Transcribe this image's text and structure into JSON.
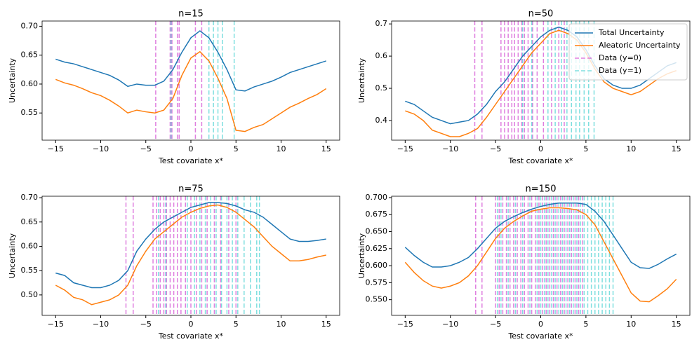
{
  "chart_data": [
    {
      "type": "line",
      "title": "n=15",
      "xlabel": "Test covariate x*",
      "ylabel": "Uncertainty",
      "x": [
        -15,
        -14,
        -13,
        -12,
        -11,
        -10,
        -9,
        -8,
        -7,
        -6,
        -5,
        -4,
        -3,
        -2,
        -1,
        0,
        1,
        2,
        3,
        4,
        5,
        6,
        7,
        8,
        9,
        10,
        11,
        12,
        13,
        14,
        15
      ],
      "series": [
        {
          "color": "#1f77b4",
          "values": [
            0.643,
            0.638,
            0.635,
            0.63,
            0.625,
            0.62,
            0.615,
            0.607,
            0.596,
            0.6,
            0.598,
            0.598,
            0.605,
            0.625,
            0.655,
            0.68,
            0.692,
            0.68,
            0.655,
            0.625,
            0.59,
            0.588,
            0.595,
            0.6,
            0.605,
            0.612,
            0.62,
            0.625,
            0.63,
            0.635,
            0.64
          ]
        },
        {
          "color": "#ff7f0e",
          "values": [
            0.608,
            0.602,
            0.598,
            0.592,
            0.585,
            0.58,
            0.572,
            0.562,
            0.55,
            0.555,
            0.552,
            0.55,
            0.555,
            0.575,
            0.615,
            0.645,
            0.656,
            0.64,
            0.61,
            0.575,
            0.52,
            0.518,
            0.525,
            0.53,
            0.54,
            0.55,
            0.56,
            0.567,
            0.575,
            0.582,
            0.592
          ]
        }
      ],
      "vlines": [
        {
          "color": "#bf00bf",
          "x": [
            -3.9,
            -2.3,
            -2.1,
            -1.5,
            -1.3,
            0.5,
            1.2
          ]
        },
        {
          "color": "#00bfbf",
          "x": [
            -2.2,
            2.0,
            2.5,
            3.0,
            3.5,
            4.8
          ]
        }
      ],
      "alpha": 0.5,
      "xlim": [
        -16.5,
        16.5
      ],
      "ylim": [
        0.503,
        0.709
      ],
      "xticks": [
        {
          "value": -15,
          "label": "−15"
        },
        {
          "value": -10,
          "label": "−10"
        },
        {
          "value": -5,
          "label": "−5"
        },
        0,
        5,
        10,
        15
      ],
      "yticks": [
        0.55,
        {
          "value": 0.6,
          "label": "0.60"
        },
        0.65,
        {
          "value": 0.7,
          "label": "0.70"
        }
      ]
    },
    {
      "type": "line",
      "title": "n=50",
      "xlabel": "Test covariate x*",
      "ylabel": "Uncertainty",
      "x": [
        -15,
        -14,
        -13,
        -12,
        -11,
        -10,
        -9,
        -8,
        -7,
        -6,
        -5,
        -4,
        -3,
        -2,
        -1,
        0,
        1,
        2,
        3,
        4,
        5,
        6,
        7,
        8,
        9,
        10,
        11,
        12,
        13,
        14,
        15
      ],
      "series": [
        {
          "name": "Total Uncertainty",
          "color": "#1f77b4",
          "values": [
            0.46,
            0.45,
            0.43,
            0.41,
            0.4,
            0.39,
            0.395,
            0.4,
            0.42,
            0.45,
            0.49,
            0.52,
            0.56,
            0.6,
            0.63,
            0.66,
            0.68,
            0.69,
            0.68,
            0.66,
            0.62,
            0.57,
            0.53,
            0.51,
            0.5,
            0.5,
            0.51,
            0.53,
            0.55,
            0.57,
            0.58
          ]
        },
        {
          "name": "Aleatoric Uncertainty",
          "color": "#ff7f0e",
          "values": [
            0.43,
            0.42,
            0.4,
            0.37,
            0.36,
            0.35,
            0.35,
            0.36,
            0.375,
            0.41,
            0.45,
            0.49,
            0.53,
            0.57,
            0.61,
            0.64,
            0.67,
            0.68,
            0.67,
            0.65,
            0.61,
            0.56,
            0.52,
            0.5,
            0.49,
            0.48,
            0.49,
            0.51,
            0.53,
            0.545,
            0.555
          ]
        }
      ],
      "vlines": [
        {
          "name": "Data (y=0)",
          "color": "#bf00bf",
          "x": [
            -7.3,
            -6.5,
            -4.4,
            -4,
            -3.6,
            -3.2,
            -2.9,
            -2.5,
            -2.1,
            -1.8,
            -1.4,
            -0.9,
            -0.4,
            0.3,
            1.2,
            2,
            2.6
          ]
        },
        {
          "name": "Data (y=1)",
          "color": "#00bfbf",
          "x": [
            -2,
            -1,
            0.8,
            1.6,
            2.3,
            2.9,
            3.4,
            3.9,
            4.3,
            4.8,
            5.3,
            5.9
          ]
        }
      ],
      "alpha": 0.5,
      "legend": "upper right",
      "xlim": [
        -16.5,
        16.5
      ],
      "ylim": [
        0.339,
        0.709
      ],
      "xticks": [
        {
          "value": -15,
          "label": "−15"
        },
        {
          "value": -10,
          "label": "−10"
        },
        {
          "value": -5,
          "label": "−5"
        },
        0,
        5,
        10,
        15
      ],
      "yticks": [
        0.4,
        0.5,
        0.6,
        0.7
      ]
    },
    {
      "type": "line",
      "title": "n=75",
      "xlabel": "Test covariate x*",
      "ylabel": "Uncertainty",
      "x": [
        -15,
        -14,
        -13,
        -12,
        -11,
        -10,
        -9,
        -8,
        -7,
        -6,
        -5,
        -4,
        -3,
        -2,
        -1,
        0,
        1,
        2,
        3,
        4,
        5,
        6,
        7,
        8,
        9,
        10,
        11,
        12,
        13,
        14,
        15
      ],
      "series": [
        {
          "color": "#1f77b4",
          "values": [
            0.545,
            0.54,
            0.525,
            0.52,
            0.515,
            0.515,
            0.52,
            0.53,
            0.55,
            0.59,
            0.615,
            0.635,
            0.65,
            0.66,
            0.67,
            0.68,
            0.685,
            0.69,
            0.69,
            0.688,
            0.683,
            0.675,
            0.67,
            0.66,
            0.645,
            0.63,
            0.615,
            0.61,
            0.61,
            0.612,
            0.615
          ]
        },
        {
          "color": "#ff7f0e",
          "values": [
            0.52,
            0.51,
            0.495,
            0.49,
            0.48,
            0.485,
            0.49,
            0.5,
            0.52,
            0.56,
            0.59,
            0.615,
            0.63,
            0.645,
            0.66,
            0.67,
            0.678,
            0.683,
            0.685,
            0.68,
            0.67,
            0.655,
            0.64,
            0.62,
            0.6,
            0.585,
            0.57,
            0.57,
            0.573,
            0.578,
            0.582
          ]
        }
      ],
      "vlines": [
        {
          "color": "#bf00bf",
          "x": [
            -7.2,
            -6.4,
            -4.2,
            -3.8,
            -3.4,
            -3,
            -2.7,
            -2.3,
            -1.9,
            -1.5,
            -1.1,
            -0.6,
            0,
            0.6,
            1.2,
            1.8,
            2.6,
            3.3,
            4.2,
            5
          ]
        },
        {
          "color": "#00bfbf",
          "x": [
            -3.6,
            -2.8,
            -0.4,
            0.4,
            1,
            1.6,
            2.2,
            2.8,
            3.4,
            4,
            4.6,
            5.2,
            5.9,
            6.6,
            7.3,
            7.6
          ]
        }
      ],
      "alpha": 0.5,
      "xlim": [
        -16.5,
        16.5
      ],
      "ylim": [
        0.458,
        0.703
      ],
      "xticks": [
        {
          "value": -15,
          "label": "−15"
        },
        {
          "value": -10,
          "label": "−10"
        },
        {
          "value": -5,
          "label": "−5"
        },
        0,
        5,
        10,
        15
      ],
      "yticks": [
        {
          "value": 0.5,
          "label": "0.50"
        },
        0.55,
        {
          "value": 0.6,
          "label": "0.60"
        },
        0.65,
        {
          "value": 0.7,
          "label": "0.70"
        }
      ]
    },
    {
      "type": "line",
      "title": "n=150",
      "xlabel": "Test covariate x*",
      "ylabel": "Uncertainty",
      "x": [
        -15,
        -14,
        -13,
        -12,
        -11,
        -10,
        -9,
        -8,
        -7,
        -6,
        -5,
        -4,
        -3,
        -2,
        -1,
        0,
        1,
        2,
        3,
        4,
        5,
        6,
        7,
        8,
        9,
        10,
        11,
        12,
        13,
        14,
        15
      ],
      "series": [
        {
          "color": "#1f77b4",
          "values": [
            0.627,
            0.615,
            0.605,
            0.598,
            0.598,
            0.6,
            0.605,
            0.612,
            0.625,
            0.64,
            0.655,
            0.665,
            0.672,
            0.678,
            0.683,
            0.687,
            0.69,
            0.692,
            0.692,
            0.692,
            0.69,
            0.68,
            0.665,
            0.645,
            0.625,
            0.605,
            0.597,
            0.596,
            0.602,
            0.61,
            0.617
          ]
        },
        {
          "color": "#ff7f0e",
          "values": [
            0.605,
            0.59,
            0.578,
            0.57,
            0.567,
            0.57,
            0.575,
            0.585,
            0.6,
            0.62,
            0.64,
            0.655,
            0.665,
            0.673,
            0.68,
            0.683,
            0.685,
            0.685,
            0.684,
            0.682,
            0.675,
            0.66,
            0.635,
            0.61,
            0.585,
            0.56,
            0.548,
            0.547,
            0.556,
            0.566,
            0.58
          ]
        }
      ],
      "vlines": [
        {
          "color": "#bf00bf",
          "x": [
            -7.2,
            -6.5,
            -5,
            -4.6,
            -4.2,
            -3.8,
            -3.4,
            -3,
            -2.6,
            -2.2,
            -1.8,
            -1.4,
            -1,
            -0.6,
            -0.2,
            0.2,
            0.6,
            1,
            1.4,
            1.8,
            2.2,
            2.6,
            3,
            3.4,
            3.8,
            4.2,
            4.6
          ]
        },
        {
          "color": "#00bfbf",
          "x": [
            -4.8,
            -4.4,
            -3.6,
            -2.8,
            -2,
            -1.2,
            -0.4,
            0,
            0.4,
            0.8,
            1.2,
            1.6,
            2,
            2.4,
            2.8,
            3.2,
            3.6,
            4,
            4.4,
            4.8,
            5.2,
            5.6,
            6,
            6.4,
            6.8,
            7.2,
            7.6,
            8
          ]
        }
      ],
      "alpha": 0.5,
      "xlim": [
        -16.5,
        16.5
      ],
      "ylim": [
        0.527,
        0.702
      ],
      "xticks": [
        {
          "value": -15,
          "label": "−15"
        },
        {
          "value": -10,
          "label": "−10"
        },
        {
          "value": -5,
          "label": "−5"
        },
        0,
        5,
        10,
        15
      ],
      "yticks": [
        {
          "value": 0.55,
          "label": "0.550"
        },
        0.575,
        {
          "value": 0.6,
          "label": "0.600"
        },
        0.625,
        {
          "value": 0.65,
          "label": "0.650"
        },
        0.675,
        {
          "value": 0.7,
          "label": "0.700"
        }
      ]
    }
  ]
}
